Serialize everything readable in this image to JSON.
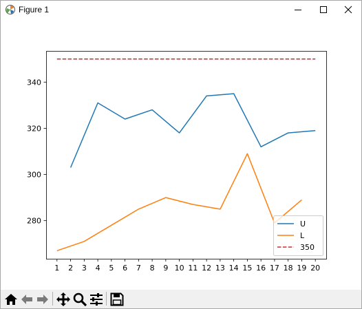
{
  "window": {
    "title": "Figure 1",
    "controls": [
      "minimize-icon",
      "maximize-icon",
      "close-icon"
    ]
  },
  "toolbar": {
    "buttons": [
      "home-icon",
      "back-arrow-icon",
      "forward-arrow-icon",
      "pan-icon",
      "zoom-icon",
      "configure-subplots-icon",
      "save-icon"
    ]
  },
  "chart_data": {
    "type": "line",
    "title": "",
    "xlabel": "",
    "ylabel": "",
    "x": [
      1,
      2,
      3,
      4,
      5,
      6,
      7,
      8,
      9,
      10,
      11,
      12,
      13,
      14,
      15,
      16,
      17,
      18,
      19,
      20
    ],
    "xticks": [
      "1",
      "2",
      "3",
      "4",
      "5",
      "6",
      "7",
      "8",
      "9",
      "10",
      "11",
      "12",
      "13",
      "14",
      "15",
      "16",
      "17",
      "18",
      "19",
      "20"
    ],
    "yticks": [
      280,
      300,
      320,
      340
    ],
    "ytick_labels": [
      "280",
      "300",
      "320",
      "340"
    ],
    "xlim": [
      0.2,
      20.8
    ],
    "ylim": [
      263.5,
      353.5
    ],
    "grid": false,
    "legend_position": "lower right",
    "series": [
      {
        "name": "U",
        "color": "#1f77b4",
        "style": "solid",
        "x": [
          2,
          4,
          6,
          8,
          10,
          12,
          14,
          16,
          18,
          20
        ],
        "y": [
          303,
          331,
          324,
          328,
          318,
          334,
          335,
          312,
          318,
          319
        ]
      },
      {
        "name": "L",
        "color": "#ff7f0e",
        "style": "solid",
        "x": [
          1,
          3,
          5,
          7,
          9,
          11,
          13,
          15,
          17,
          19
        ],
        "y": [
          267,
          271,
          278,
          285,
          290,
          287,
          285,
          309,
          279,
          289
        ]
      },
      {
        "name": "350",
        "color": "#d62728",
        "style": "dashed",
        "x": [
          1,
          20
        ],
        "y": [
          350,
          350
        ]
      }
    ]
  }
}
